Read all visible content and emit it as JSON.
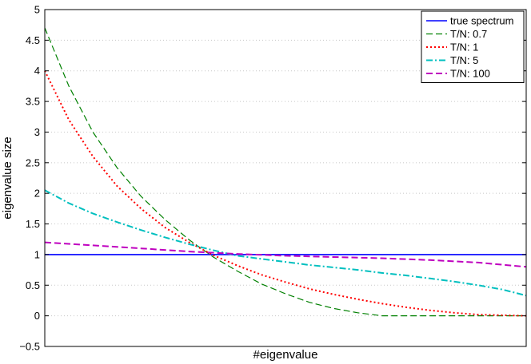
{
  "chart_data": {
    "type": "line",
    "title": "",
    "xlabel": "#eigenvalue",
    "ylabel": "eigenvalue size",
    "xlim": [
      0,
      1
    ],
    "ylim": [
      -0.5,
      5
    ],
    "x_tick_labels_shown": false,
    "yticks": [
      -0.5,
      0,
      0.5,
      1,
      1.5,
      2,
      2.5,
      3,
      3.5,
      4,
      4.5,
      5
    ],
    "ytick_labels": [
      "−0.5",
      "0",
      "0.5",
      "1",
      "1.5",
      "2",
      "2.5",
      "3",
      "3.5",
      "4",
      "4.5",
      "5"
    ],
    "grid": "horizontal dotted",
    "legend_position": "top-right",
    "series": [
      {
        "name": "true spectrum",
        "color": "#0000ff",
        "dash": "solid",
        "x": [
          0,
          1
        ],
        "values": [
          1,
          1
        ]
      },
      {
        "name": "T/N: 0.7",
        "color": "#008000",
        "dash": "dashed",
        "x": [
          0,
          0.05,
          0.1,
          0.15,
          0.2,
          0.25,
          0.3,
          0.35,
          0.4,
          0.45,
          0.5,
          0.55,
          0.6,
          0.65,
          0.7,
          1
        ],
        "values": [
          4.7,
          3.75,
          3.0,
          2.42,
          1.95,
          1.57,
          1.24,
          0.96,
          0.73,
          0.52,
          0.36,
          0.22,
          0.12,
          0.05,
          0.0,
          0.0
        ]
      },
      {
        "name": "T/N: 1",
        "color": "#ff0000",
        "dash": "dotted",
        "x": [
          0,
          0.05,
          0.1,
          0.15,
          0.2,
          0.25,
          0.3,
          0.35,
          0.4,
          0.45,
          0.5,
          0.55,
          0.6,
          0.65,
          0.7,
          0.75,
          0.8,
          0.85,
          0.9,
          0.95,
          1
        ],
        "values": [
          4.0,
          3.2,
          2.6,
          2.12,
          1.75,
          1.44,
          1.2,
          0.99,
          0.82,
          0.67,
          0.55,
          0.44,
          0.35,
          0.27,
          0.2,
          0.14,
          0.09,
          0.05,
          0.02,
          0.01,
          0.0
        ]
      },
      {
        "name": "T/N: 5",
        "color": "#00bfbf",
        "dash": "dashdot",
        "x": [
          0,
          0.05,
          0.1,
          0.15,
          0.2,
          0.25,
          0.3,
          0.35,
          0.4,
          0.45,
          0.5,
          0.55,
          0.6,
          0.65,
          0.7,
          0.75,
          0.8,
          0.85,
          0.9,
          0.95,
          1
        ],
        "values": [
          2.05,
          1.84,
          1.67,
          1.53,
          1.4,
          1.28,
          1.17,
          1.07,
          0.98,
          0.93,
          0.88,
          0.83,
          0.79,
          0.75,
          0.7,
          0.66,
          0.61,
          0.56,
          0.5,
          0.43,
          0.33
        ]
      },
      {
        "name": "T/N: 100",
        "color": "#bf00bf",
        "dash": "dashed",
        "x": [
          0,
          0.1,
          0.2,
          0.3,
          0.4,
          0.5,
          0.6,
          0.7,
          0.8,
          0.9,
          1
        ],
        "values": [
          1.2,
          1.15,
          1.1,
          1.05,
          1.01,
          0.98,
          0.96,
          0.94,
          0.91,
          0.87,
          0.8
        ]
      }
    ]
  }
}
